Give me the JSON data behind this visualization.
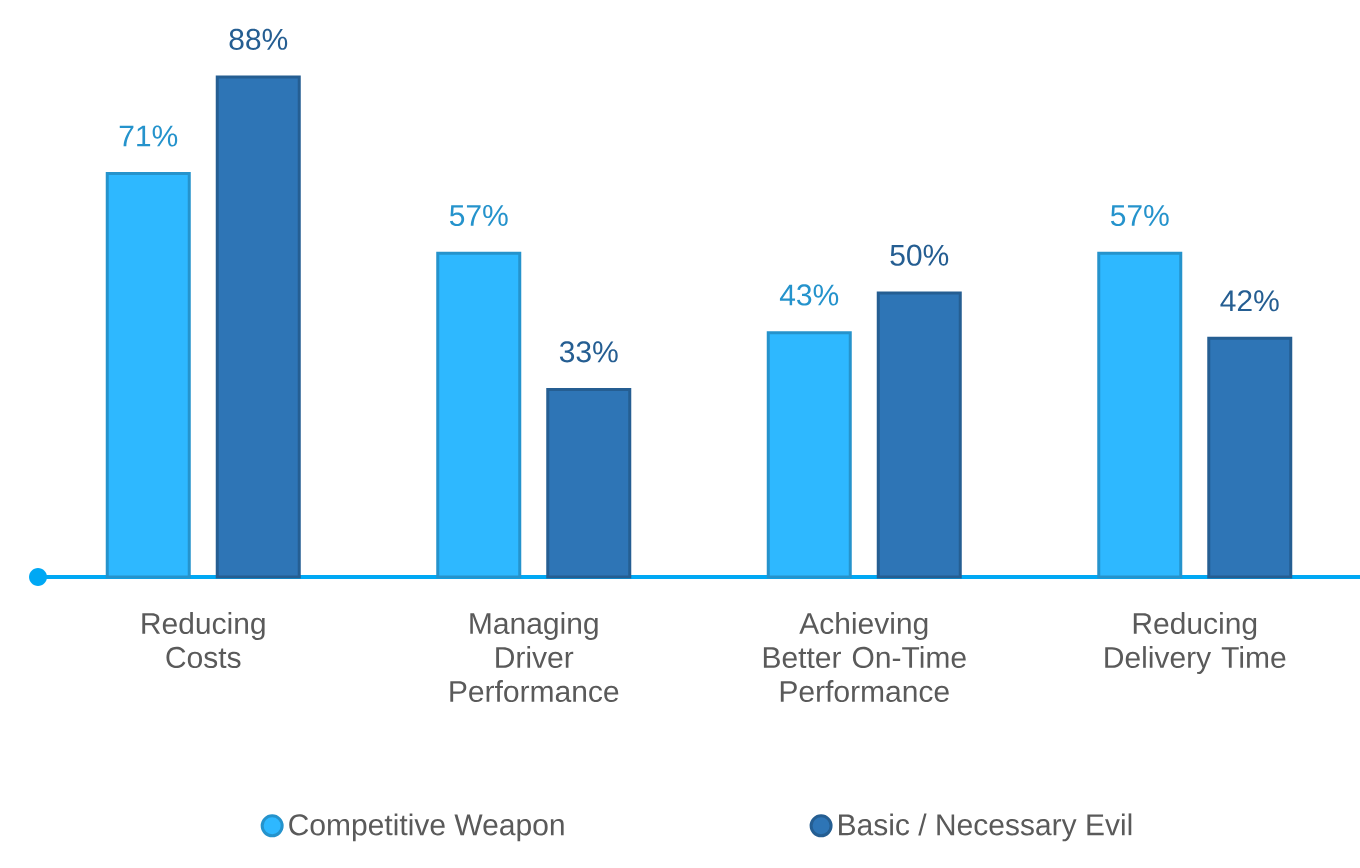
{
  "chart_data": {
    "type": "bar",
    "categories": [
      "Reducing Costs",
      "Managing Driver Performance",
      "Achieving Better On-Time Performance",
      "Reducing Delivery Time"
    ],
    "series": [
      {
        "name": "Competitive Weapon",
        "color": "#2eb8ff",
        "values": [
          71,
          57,
          43,
          57
        ],
        "value_labels": [
          "71%",
          "57%",
          "43%",
          "57%"
        ]
      },
      {
        "name": "Basic / Necessary Evil",
        "color": "#2e75b6",
        "values": [
          88,
          33,
          50,
          42
        ],
        "value_labels": [
          "88%",
          "33%",
          "50%",
          "42%"
        ]
      }
    ],
    "legend": "bottom"
  }
}
